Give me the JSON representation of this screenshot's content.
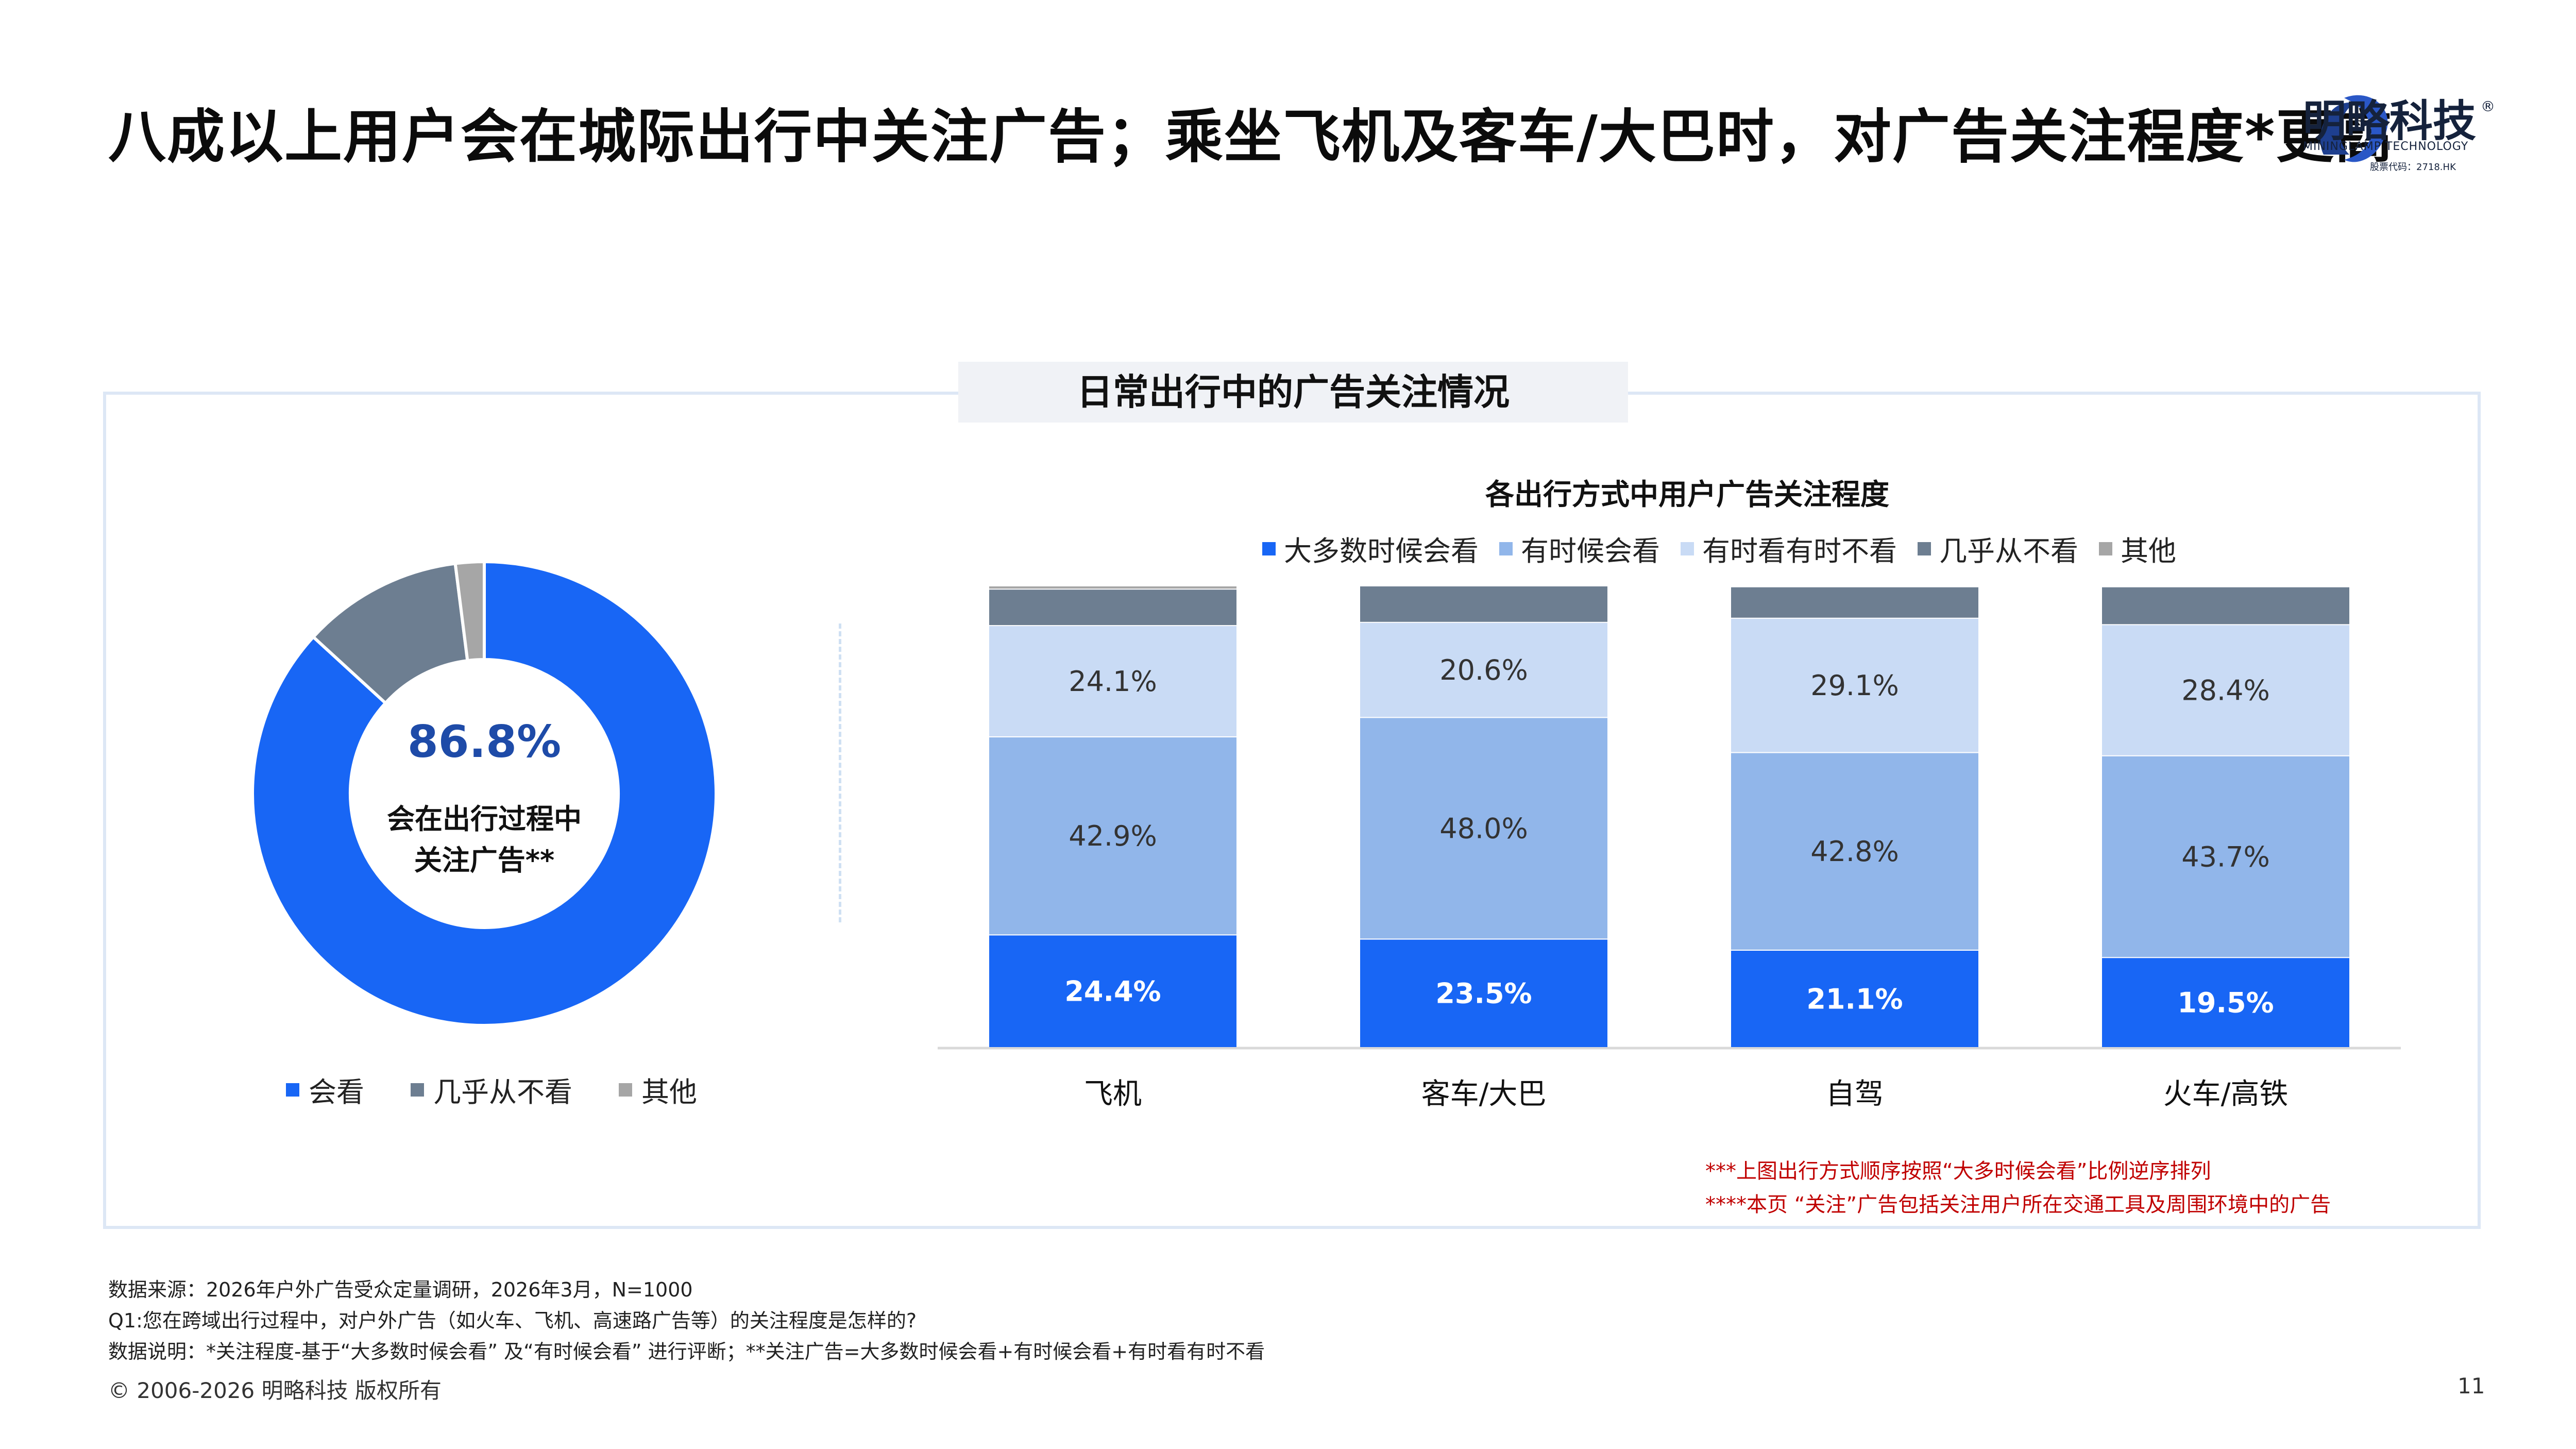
{
  "header": {
    "title": "八成以上用户会在城际出行中关注广告；乘坐飞机及客车/大巴时，对广告关注程度*更高",
    "logo_text": "明略科技",
    "logo_en": "MININGLAMP TECHNOLOGY",
    "logo_stock": "股票代码：2718.HK",
    "logo_reg": "®"
  },
  "panel": {
    "title": "日常出行中的广告关注情况"
  },
  "colors": {
    "most": "#1866f5",
    "sometimes": "#91b6ea",
    "half": "#c9dbf5",
    "rarely": "#6d7e91",
    "other": "#a6a6a6"
  },
  "chart_data": [
    {
      "type": "pie",
      "style": "donut",
      "center_value": "86.8%",
      "center_label_line1": "会在出行过程中",
      "center_label_line2": "关注广告**",
      "legend_placement": "bottom",
      "slices": [
        {
          "name": "会看",
          "value": 86.8,
          "color": "#1866f5"
        },
        {
          "name": "几乎从不看",
          "value": 11.2,
          "color": "#6d7e91"
        },
        {
          "name": "其他",
          "value": 2.0,
          "color": "#a6a6a6"
        }
      ]
    },
    {
      "type": "bar",
      "stacked": true,
      "title": "各出行方式中用户广告关注程度",
      "legend_placement": "top",
      "categories": [
        "飞机",
        "客车/大巴",
        "自驾",
        "火车/高铁"
      ],
      "series": [
        {
          "name": "大多数时候会看",
          "values": [
            24.4,
            23.5,
            21.1,
            19.5
          ],
          "labels": [
            "24.4%",
            "23.5%",
            "21.1%",
            "19.5%"
          ],
          "color": "#1866f5"
        },
        {
          "name": "有时候会看",
          "values": [
            42.9,
            48.0,
            42.8,
            43.7
          ],
          "labels": [
            "42.9%",
            "48.0%",
            "42.8%",
            "43.7%"
          ],
          "color": "#91b6ea"
        },
        {
          "name": "有时看有时不看",
          "values": [
            24.1,
            20.6,
            29.1,
            28.4
          ],
          "labels": [
            "24.1%",
            "20.6%",
            "29.1%",
            "28.4%"
          ],
          "color": "#c9dbf5"
        },
        {
          "name": "几乎从不看",
          "values": [
            7.9,
            7.9,
            6.8,
            8.2
          ],
          "color": "#6d7e91"
        },
        {
          "name": "其他",
          "values": [
            0.7,
            0.0,
            0.2,
            0.2
          ],
          "color": "#a6a6a6"
        }
      ],
      "ylim": [
        0,
        100
      ]
    }
  ],
  "notes": {
    "note1": "***上图出行方式顺序按照“大多时候会看”比例逆序排列",
    "note2": "****本页 “关注”广告包括关注用户所在交通工具及周围环境中的广告"
  },
  "footer": {
    "source": "数据来源：2026年户外广告受众定量调研，2026年3月，N=1000",
    "question": "Q1:您在跨域出行过程中，对户外广告（如火车、飞机、高速路广告等）的关注程度是怎样的?",
    "explain": "数据说明：*关注程度-基于“大多数时候会看” 及“有时候会看” 进行评断；**关注广告=大多数时候会看+有时候会看+有时看有时不看",
    "copyright": "© 2006-2026 明略科技 版权所有",
    "page": "11"
  }
}
